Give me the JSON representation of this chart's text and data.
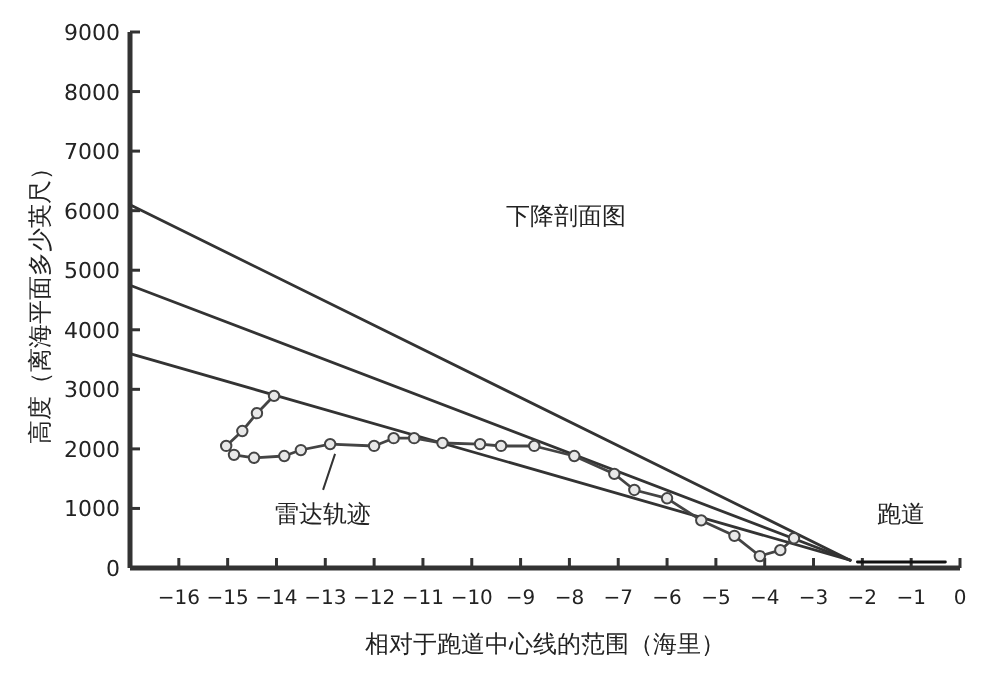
{
  "chart_data": {
    "type": "line",
    "title": "下降剖面图",
    "xlabel": "相对于跑道中心线的范围（海里）",
    "ylabel": "高度（离海平面多少英尺）",
    "xlim": [
      -17,
      0
    ],
    "xticks": [
      {
        "value": -16,
        "label": "−16"
      },
      {
        "value": -15,
        "label": "−15"
      },
      {
        "value": -14,
        "label": "−14"
      },
      {
        "value": -13,
        "label": "−13"
      },
      {
        "value": -12,
        "label": "−12"
      },
      {
        "value": -11,
        "label": "−11"
      },
      {
        "value": -10,
        "label": "−10"
      },
      {
        "value": -9,
        "label": "−9"
      },
      {
        "value": -8,
        "label": "−8"
      },
      {
        "value": -7,
        "label": "−7"
      },
      {
        "value": -6,
        "label": "−6"
      },
      {
        "value": -5,
        "label": "−5"
      },
      {
        "value": -4,
        "label": "−4"
      },
      {
        "value": -3,
        "label": "−3"
      },
      {
        "value": -2,
        "label": "−2"
      },
      {
        "value": -1,
        "label": "−1"
      },
      0
    ],
    "ylim": [
      0,
      9000
    ],
    "yticks": [
      0,
      1000,
      2000,
      3000,
      4000,
      5000,
      6000,
      7000,
      8000,
      9000
    ],
    "grid": false,
    "series": [
      {
        "color": "#333333",
        "x": [
          -17,
          -2.25
        ],
        "values": [
          6100,
          130
        ],
        "marker": "none"
      },
      {
        "color": "#333333",
        "x": [
          -17,
          -2.25
        ],
        "values": [
          4750,
          130
        ],
        "marker": "none"
      },
      {
        "color": "#333333",
        "x": [
          -17,
          -2.25
        ],
        "values": [
          3600,
          130
        ],
        "marker": "none"
      },
      {
        "color": "#111111",
        "x": [
          -2.1,
          -0.3
        ],
        "values": [
          100,
          100
        ],
        "marker": "none"
      },
      {
        "color": "#444444",
        "marker": "circle",
        "x": [
          -14.05,
          -14.4,
          -14.7,
          -15.03,
          -14.87,
          -14.46,
          -13.84,
          -13.5,
          -12.9,
          -12.0,
          -11.6,
          -11.18,
          -10.6,
          -9.83,
          -9.4,
          -8.72,
          -7.9,
          -7.08,
          -6.67,
          -6.0,
          -5.3,
          -4.62,
          -4.1,
          -3.68,
          -3.4
        ],
        "values": [
          2890,
          2600,
          2300,
          2050,
          1900,
          1850,
          1880,
          1980,
          2080,
          2050,
          2180,
          2180,
          2100,
          2080,
          2050,
          2050,
          1880,
          1580,
          1310,
          1170,
          800,
          540,
          200,
          300,
          500
        ]
      }
    ],
    "annotations": [
      {
        "text": "雷达轨迹",
        "x": -12.8,
        "y": 2050
      },
      {
        "text": "跑道",
        "x": -1.2,
        "y": 100
      }
    ]
  }
}
